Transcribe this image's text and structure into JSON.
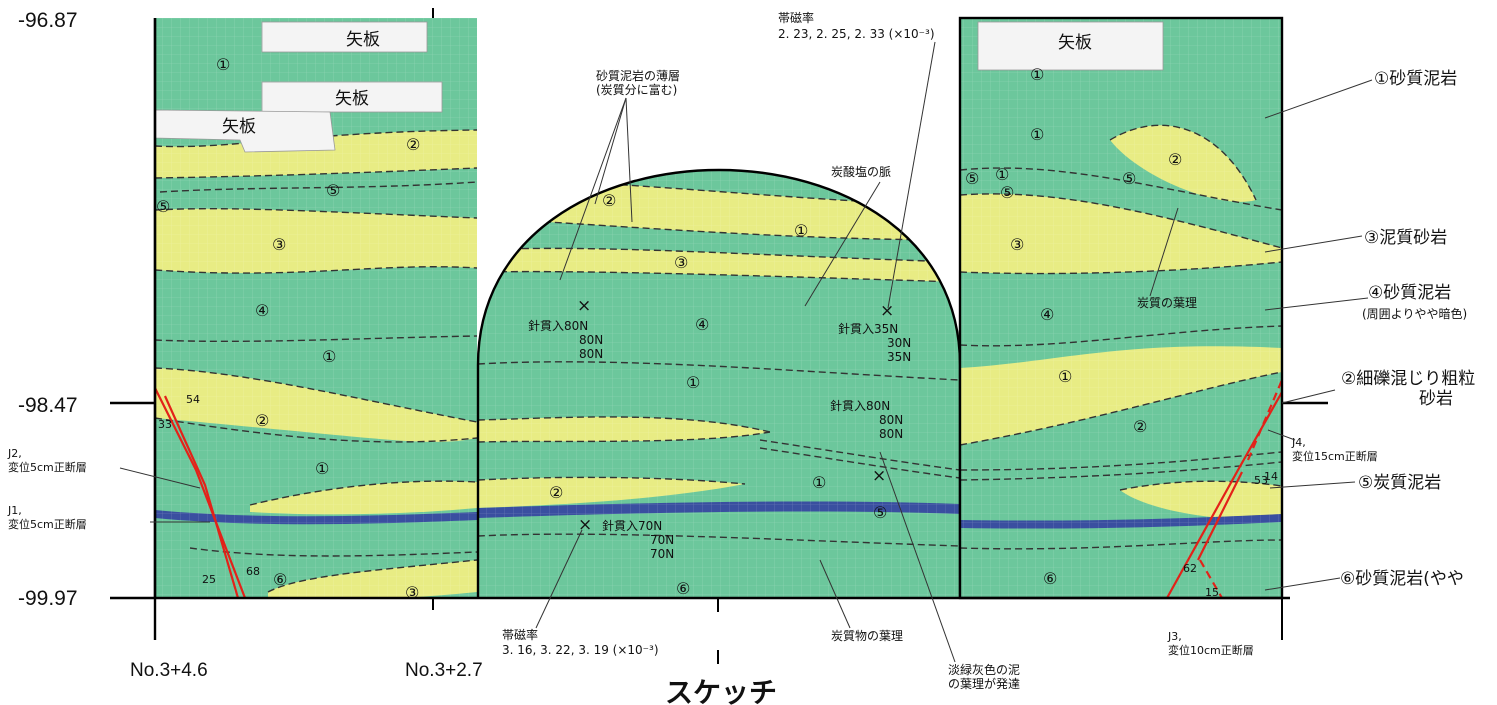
{
  "title": "スケッチ",
  "elevations": [
    "-96.87",
    "-98.47",
    "-99.97"
  ],
  "stations": [
    "No.3+4.6",
    "No.3+2.7"
  ],
  "sheet_piles": [
    "矢板",
    "矢板",
    "矢板",
    "矢板"
  ],
  "legend": [
    {
      "label": "①砂質泥岩",
      "sub": ""
    },
    {
      "label": "③泥質砂岩",
      "sub": ""
    },
    {
      "label": "④砂質泥岩",
      "sub": "(周囲よりやや暗色)"
    },
    {
      "label": "②細礫混じり粗粒",
      "sub": "砂岩"
    },
    {
      "label": "⑤炭質泥岩",
      "sub": ""
    },
    {
      "label": "⑥砂質泥岩(やや",
      "sub": ""
    }
  ],
  "annotations": {
    "thin_layer": [
      "砂質泥岩の薄層",
      "(炭質分に富む)"
    ],
    "mag_top": [
      "帯磁率",
      "2. 23, 2. 25, 2. 33 (×10⁻³)"
    ],
    "mag_bottom": [
      "帯磁率",
      "3. 16, 3. 22, 3. 19 (×10⁻³)"
    ],
    "carbonate_vein": "炭酸塩の脈",
    "carbon_lamina_right": "炭質の葉理",
    "carbon_lamina_bottom": "炭質物の葉理",
    "pale_mud": [
      "淡緑灰色の泥",
      "の葉理が発達"
    ]
  },
  "needle_tests": [
    {
      "label": "針貫入80N",
      "more": [
        "80N",
        "80N"
      ]
    },
    {
      "label": "針貫入35N",
      "more": [
        "30N",
        "35N"
      ]
    },
    {
      "label": "針貫入80N",
      "more": [
        "80N",
        "80N"
      ]
    },
    {
      "label": "針貫入70N",
      "more": [
        "70N",
        "70N"
      ]
    }
  ],
  "joints": [
    {
      "id": "J2,",
      "desc": "変位5cm正断層"
    },
    {
      "id": "J1,",
      "desc": "変位5cm正断層"
    },
    {
      "id": "J4,",
      "desc": "変位15cm正断層"
    },
    {
      "id": "J3,",
      "desc": "変位10cm正断層"
    }
  ],
  "dips": [
    "54",
    "33",
    "25",
    "68",
    "53",
    "14",
    "62",
    "15"
  ],
  "layer_marks": [
    "①",
    "②",
    "③",
    "④",
    "⑤",
    "⑥"
  ],
  "colors": {
    "mudstone_green": "#6cc79c",
    "sandstone_yellow": "#e8ec84",
    "carbonaceous_blue": "#3a4fa0",
    "fault_red": "#e32219",
    "frame": "#000000"
  }
}
